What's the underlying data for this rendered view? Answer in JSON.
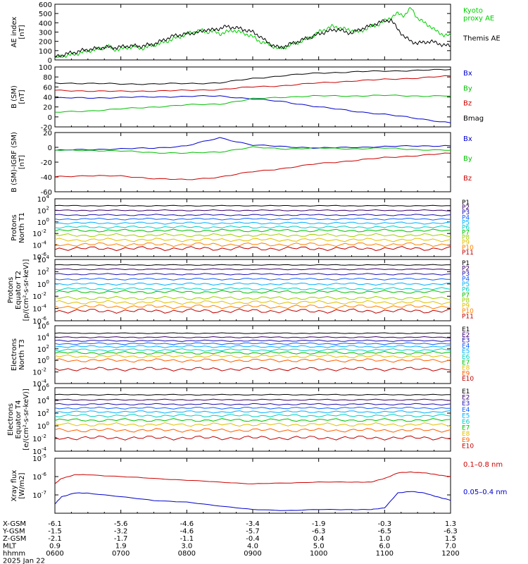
{
  "time_axis": {
    "tick_times": [
      "0600",
      "0700",
      "0800",
      "0900",
      "1000",
      "1100",
      "1200"
    ],
    "rows": [
      {
        "label": "X-GSM",
        "values": [
          "-6.1",
          "-5.6",
          "-4.6",
          "-3.4",
          "-1.9",
          "-0.3",
          "1.3"
        ]
      },
      {
        "label": "Y-GSM",
        "values": [
          "-1.5",
          "-3.2",
          "-4.6",
          "-5.7",
          "-6.3",
          "-6.5",
          "-6.3"
        ]
      },
      {
        "label": "Z-GSM",
        "values": [
          "-2.1",
          "-1.7",
          "-1.1",
          "-0.4",
          "0.4",
          "1.0",
          "1.5"
        ]
      },
      {
        "label": "MLT",
        "values": [
          "0.9",
          "1.9",
          "3.0",
          "4.0",
          "5.0",
          "6.0",
          "7.0"
        ]
      },
      {
        "label": "hhmm",
        "values": [
          "0600",
          "0700",
          "0800",
          "0900",
          "1000",
          "1100",
          "1200"
        ]
      }
    ],
    "date": "2025 Jan 22"
  },
  "chart_data": [
    {
      "type": "line",
      "ylabel": "AE index\n[nT]",
      "ylim": [
        0,
        600
      ],
      "yticks": [
        "0",
        "100",
        "200",
        "300",
        "400",
        "500",
        "600"
      ],
      "x": [
        0,
        0.1,
        0.2,
        0.3,
        0.4,
        0.5,
        0.6,
        0.7,
        0.8,
        0.9,
        1.0,
        1.1,
        1.2,
        1.3,
        1.4,
        1.5,
        1.6,
        1.7,
        1.8,
        1.9,
        2.0,
        2.1,
        2.2,
        2.3,
        2.4,
        2.5,
        2.6,
        2.7,
        2.8,
        2.9,
        3.0,
        3.1,
        3.2,
        3.3,
        3.4,
        3.5,
        3.6,
        3.7,
        3.8,
        3.9,
        4.0,
        4.1,
        4.2,
        4.3,
        4.4,
        4.5,
        4.6,
        4.7,
        4.8,
        4.9,
        5.0,
        5.1,
        5.2,
        5.3,
        5.4,
        5.5,
        5.6,
        5.7,
        5.8,
        5.9,
        6.0
      ],
      "series": [
        {
          "name": "Kyoto\nproxy AE",
          "color": "#00d000",
          "values": [
            20,
            40,
            50,
            60,
            80,
            95,
            110,
            120,
            150,
            110,
            120,
            130,
            150,
            120,
            140,
            160,
            180,
            200,
            230,
            250,
            280,
            300,
            320,
            300,
            310,
            280,
            300,
            320,
            300,
            280,
            250,
            200,
            180,
            150,
            120,
            140,
            170,
            190,
            220,
            250,
            300,
            330,
            360,
            350,
            330,
            320,
            300,
            330,
            360,
            380,
            420,
            460,
            500,
            480,
            560,
            450,
            400,
            360,
            300,
            270,
            260
          ]
        },
        {
          "name": "Themis AE",
          "color": "#000000",
          "values": [
            30,
            50,
            70,
            80,
            100,
            110,
            120,
            130,
            140,
            130,
            140,
            150,
            150,
            145,
            160,
            170,
            200,
            230,
            260,
            270,
            280,
            290,
            300,
            330,
            320,
            340,
            360,
            350,
            340,
            320,
            300,
            260,
            200,
            160,
            130,
            150,
            180,
            200,
            230,
            250,
            280,
            300,
            320,
            330,
            300,
            290,
            320,
            350,
            370,
            400,
            420,
            430,
            330,
            250,
            200,
            180,
            190,
            200,
            180,
            160,
            150
          ]
        }
      ]
    },
    {
      "type": "line",
      "ylabel": "B (SM)\n[nT]",
      "ylim": [
        -20,
        100
      ],
      "yticks": [
        "-20",
        "0",
        "20",
        "40",
        "60",
        "80",
        "100"
      ],
      "x": [
        0,
        0.5,
        1.0,
        1.5,
        2.0,
        2.5,
        3.0,
        3.5,
        4.0,
        4.5,
        5.0,
        5.5,
        6.0
      ],
      "series": [
        {
          "name": "Bx",
          "color": "#0000cc",
          "values": [
            38,
            38,
            39,
            40,
            41,
            42,
            36,
            30,
            20,
            12,
            5,
            -3,
            -12
          ]
        },
        {
          "name": "By",
          "color": "#00c000",
          "values": [
            9,
            12,
            16,
            20,
            24,
            26,
            36,
            40,
            42,
            42,
            43,
            42,
            42
          ]
        },
        {
          "name": "Bz",
          "color": "#cc0000",
          "values": [
            53,
            52,
            51,
            52,
            53,
            55,
            60,
            63,
            68,
            72,
            75,
            78,
            82
          ]
        },
        {
          "name": "Bmag",
          "color": "#000000",
          "values": [
            68,
            67,
            66,
            66,
            67,
            68,
            77,
            83,
            88,
            90,
            92,
            93,
            95
          ]
        }
      ]
    },
    {
      "type": "line",
      "ylabel": "B (SM)-IGRF (SM)\n[nT]",
      "ylim": [
        -60,
        20
      ],
      "yticks": [
        "-60",
        "-40",
        "-20",
        "0",
        "20"
      ],
      "x": [
        0,
        0.5,
        1.0,
        1.5,
        2.0,
        2.5,
        3.0,
        3.5,
        4.0,
        4.5,
        5.0,
        5.5,
        6.0
      ],
      "series": [
        {
          "name": "Bx",
          "color": "#0000cc",
          "values": [
            -4,
            -3,
            -2,
            -1,
            2,
            13,
            3,
            1,
            -1,
            0,
            1,
            2,
            2
          ]
        },
        {
          "name": "By",
          "color": "#00c000",
          "values": [
            -4,
            -4,
            -5,
            -7,
            -8,
            -6,
            0,
            -2,
            -1,
            -2,
            -1,
            -3,
            -4
          ]
        },
        {
          "name": "Bz",
          "color": "#cc0000",
          "values": [
            -40,
            -38,
            -39,
            -42,
            -44,
            -40,
            -33,
            -28,
            -22,
            -18,
            -14,
            -11,
            -8
          ]
        }
      ]
    },
    {
      "type": "line",
      "ylabel": "Protons\nNorth T1",
      "ylog": true,
      "ylim": [
        -6,
        4
      ],
      "yticks": [
        "10^4",
        "10^2",
        "10^0",
        "10^-2",
        "10^-4",
        "10^-6"
      ],
      "legend": [
        "P1",
        "P2",
        "P3",
        "P4",
        "P5",
        "P6",
        "P7",
        "P8",
        "P9",
        "P10",
        "P11"
      ],
      "log_levels": [
        2.8,
        2.0,
        1.2,
        0.5,
        -0.2,
        -0.9,
        -1.5,
        -2.3,
        -3.1,
        -3.9,
        -4.6
      ],
      "series_colors": [
        "#000000",
        "#3a006a",
        "#2010b0",
        "#1060ff",
        "#00b0ff",
        "#00d0c0",
        "#00c000",
        "#a0d000",
        "#e0c000",
        "#ff8000",
        "#c00000"
      ]
    },
    {
      "type": "line",
      "ylabel": "Protons\nEquator T2\n[p/(cm²-s-sr-keV)]",
      "ylog": true,
      "ylim": [
        -6,
        4
      ],
      "yticks": [
        "10^4",
        "10^2",
        "10^0",
        "10^-2",
        "10^-4",
        "10^-6"
      ],
      "legend": [
        "P1",
        "P2",
        "P3",
        "P4",
        "P5",
        "P6",
        "P7",
        "P8",
        "P9",
        "P10",
        "P11"
      ],
      "log_levels": [
        3.1,
        2.4,
        1.6,
        0.8,
        0.0,
        -0.8,
        -1.3,
        -2.3,
        -3.0,
        -3.7,
        -4.4
      ],
      "series_colors": [
        "#000000",
        "#3a006a",
        "#2010b0",
        "#1060ff",
        "#00b0ff",
        "#00d0c0",
        "#00c000",
        "#a0d000",
        "#e0c000",
        "#ff8000",
        "#c00000"
      ]
    },
    {
      "type": "line",
      "ylabel": "Electrons\nNorth T3",
      "ylog": true,
      "ylim": [
        -4,
        6
      ],
      "yticks": [
        "10^6",
        "10^4",
        "10^2",
        "10^0",
        "10^-2",
        "10^-4"
      ],
      "legend": [
        "E1",
        "E2",
        "E3",
        "E4",
        "E5",
        "E6",
        "E7",
        "E8",
        "E9",
        "E10"
      ],
      "log_levels": [
        4.7,
        4.0,
        3.4,
        2.9,
        2.4,
        1.8,
        1.3,
        0.7,
        0.0,
        -1.5
      ],
      "series_colors": [
        "#000000",
        "#3a006a",
        "#2010b0",
        "#1060ff",
        "#00b0ff",
        "#00d0c0",
        "#00c000",
        "#e0c000",
        "#ff6000",
        "#c00000"
      ]
    },
    {
      "type": "line",
      "ylabel": "Electrons\nEquator T4\n[e/(cm²-s-sr-keV)]",
      "ylog": true,
      "ylim": [
        -4,
        6
      ],
      "yticks": [
        "10^6",
        "10^4",
        "10^2",
        "10^0",
        "10^-2",
        "10^-4"
      ],
      "legend": [
        "E1",
        "E2",
        "E3",
        "E4",
        "E5",
        "E6",
        "E7",
        "E8",
        "E9",
        "E10"
      ],
      "log_levels": [
        4.9,
        4.1,
        3.4,
        2.8,
        2.2,
        1.6,
        0.9,
        0.2,
        -0.7,
        -1.9
      ],
      "series_colors": [
        "#000000",
        "#3a006a",
        "#2010b0",
        "#1060ff",
        "#00b0ff",
        "#00d0c0",
        "#00c000",
        "#e0c000",
        "#ff6000",
        "#c00000"
      ]
    },
    {
      "type": "line",
      "ylabel": "Xray flux\n[W/m2]",
      "ylog": true,
      "ylim": [
        -8,
        -5
      ],
      "yticks": [
        "10^-5",
        "10^-6",
        "10^-7"
      ],
      "x": [
        0,
        0.1,
        0.3,
        0.5,
        1.0,
        1.5,
        2.0,
        2.5,
        3.0,
        3.5,
        4.0,
        4.5,
        4.8,
        5.0,
        5.2,
        5.4,
        5.6,
        5.8,
        6.0
      ],
      "series": [
        {
          "name": "0.1–0.8 nm",
          "color": "#cc0000",
          "values": [
            -6.4,
            -6.1,
            -5.9,
            -5.9,
            -6.0,
            -6.1,
            -6.2,
            -6.3,
            -6.4,
            -6.35,
            -6.3,
            -6.3,
            -6.3,
            -6.1,
            -5.8,
            -5.75,
            -5.8,
            -5.9,
            -6.0
          ]
        },
        {
          "name": "0.05–0.4 nm",
          "color": "#0000cc",
          "values": [
            -7.5,
            -7.1,
            -6.9,
            -6.9,
            -7.1,
            -7.3,
            -7.4,
            -7.6,
            -7.8,
            -7.85,
            -7.8,
            -7.8,
            -7.8,
            -7.7,
            -6.9,
            -6.8,
            -6.9,
            -7.1,
            -7.3
          ]
        }
      ]
    }
  ]
}
